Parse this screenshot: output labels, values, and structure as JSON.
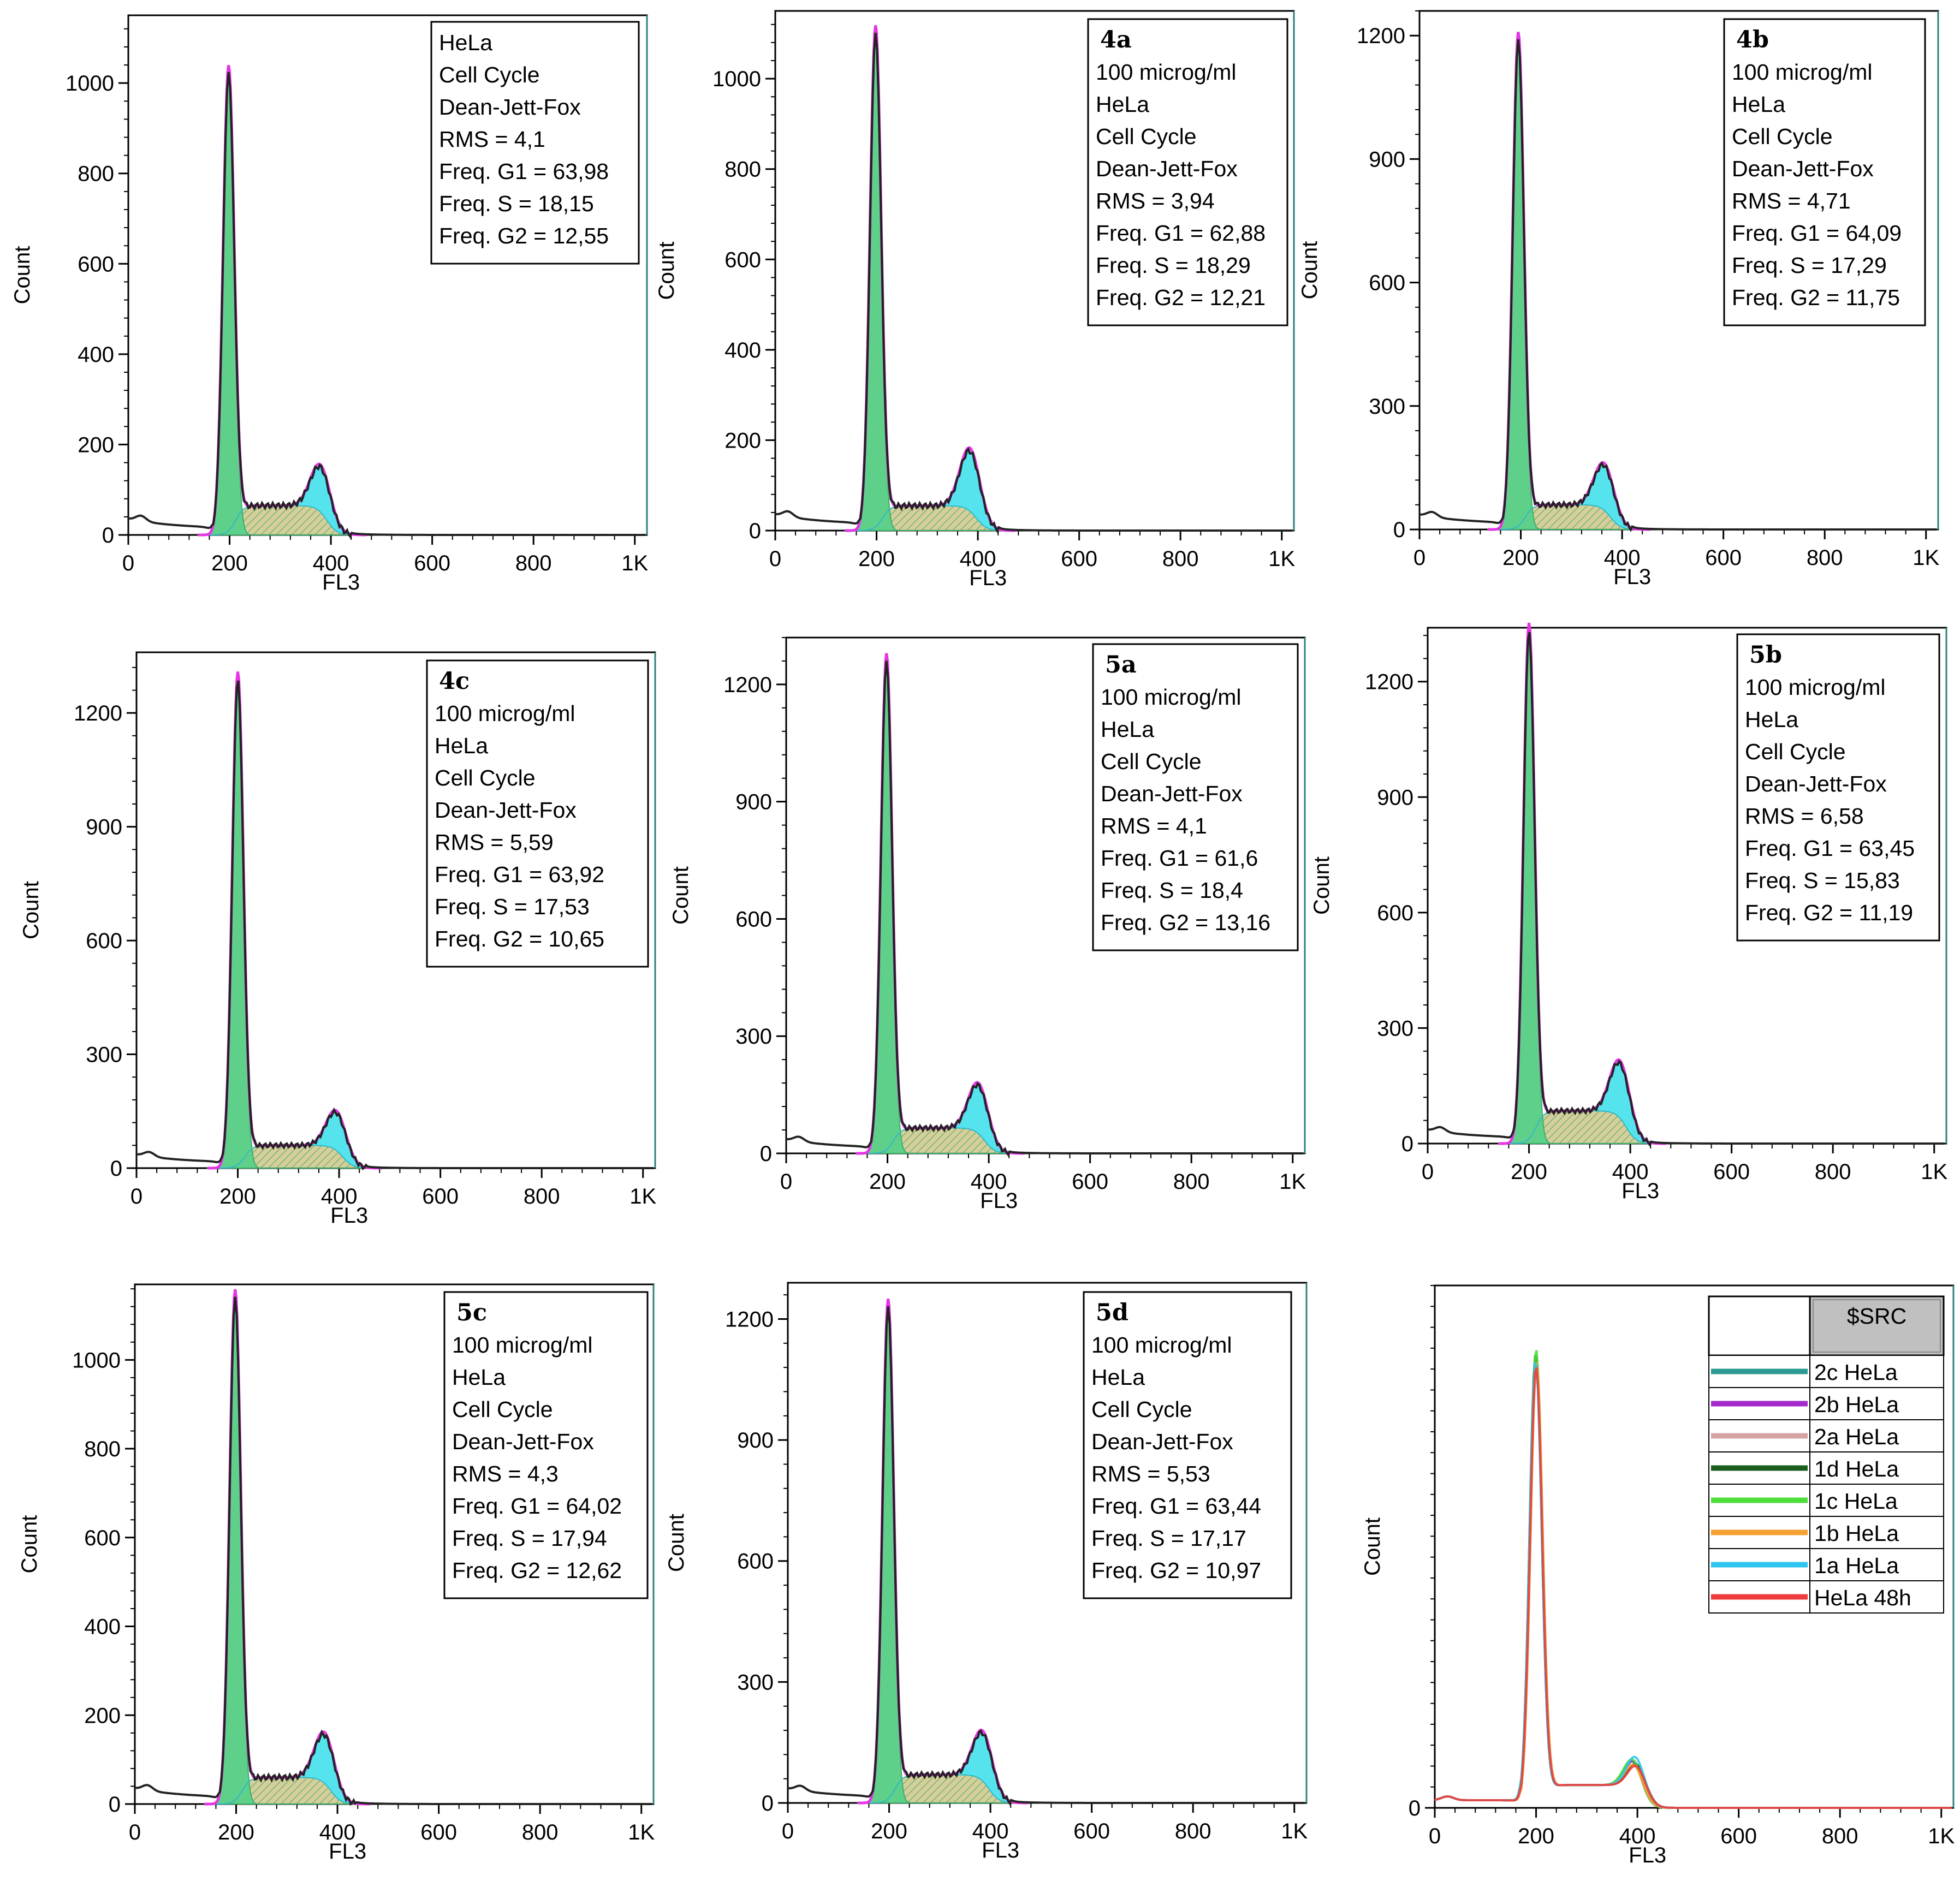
{
  "colors": {
    "g1_fill": "#5fd08a",
    "s_fill": "#cfc589",
    "g2_fill": "#55e3ee",
    "s_hatch": "#2ea85a",
    "envelope": "#e535e5",
    "data_line": "#222222",
    "frame_accent": "#2e7f7a",
    "legend_header_bg": "#c0c0c0"
  },
  "chart_data": [
    {
      "id": "base",
      "type": "histogram",
      "title": "",
      "xlabel": "FL3",
      "ylabel": "Count",
      "xlim": [
        0,
        1024
      ],
      "ylim": [
        0,
        1150
      ],
      "yticks": [
        "0",
        "200",
        "400",
        "600",
        "800",
        "1000"
      ],
      "ytick_values": [
        0,
        200,
        400,
        600,
        800,
        1000
      ],
      "xticks": [
        "0",
        "200",
        "400",
        "600",
        "800",
        "1K"
      ],
      "xtick_values": [
        0,
        200,
        400,
        600,
        800,
        1000
      ],
      "info_bold": "",
      "info_lines": [
        "HeLa",
        "Cell Cycle",
        "Dean-Jett-Fox",
        "RMS  = 4,1",
        "Freq. G1  = 63,98",
        "Freq. S = 18,15",
        "Freq. G2  = 12,55"
      ],
      "g1_peak": 1030,
      "g2_peak": 105,
      "s_level": 65,
      "g1_pos": 198,
      "g2_pos": 380
    },
    {
      "id": "4a",
      "type": "histogram",
      "xlabel": "FL3",
      "ylabel": "Count",
      "xlim": [
        0,
        1024
      ],
      "ylim": [
        0,
        1150
      ],
      "yticks": [
        "0",
        "200",
        "400",
        "600",
        "800",
        "1000"
      ],
      "ytick_values": [
        0,
        200,
        400,
        600,
        800,
        1000
      ],
      "xticks": [
        "0",
        "200",
        "400",
        "600",
        "800",
        "1K"
      ],
      "xtick_values": [
        0,
        200,
        400,
        600,
        800,
        1000
      ],
      "info_bold": "4a",
      "info_lines": [
        "100 microg/ml",
        "HeLa",
        "Cell Cycle",
        "Dean-Jett-Fox",
        "RMS  = 3,94",
        "Freq. G1  = 62,88",
        "Freq. S = 18,29",
        "Freq. G2  = 12,21"
      ],
      "g1_peak": 1110,
      "g2_peak": 140,
      "s_level": 55,
      "g1_pos": 198,
      "g2_pos": 385
    },
    {
      "id": "4b",
      "type": "histogram",
      "xlabel": "FL3",
      "ylabel": "Count",
      "xlim": [
        0,
        1024
      ],
      "ylim": [
        0,
        1260
      ],
      "yticks": [
        "0",
        "300",
        "600",
        "900",
        "1200"
      ],
      "ytick_values": [
        0,
        300,
        600,
        900,
        1200
      ],
      "xticks": [
        "0",
        "200",
        "400",
        "600",
        "800",
        "1K"
      ],
      "xtick_values": [
        0,
        200,
        400,
        600,
        800,
        1000
      ],
      "info_bold": "4b",
      "info_lines": [
        "100 microg/ml",
        "HeLa",
        "Cell Cycle",
        "Dean-Jett-Fox",
        "RMS  = 4,71",
        "Freq. G1  = 64,09",
        "Freq. S = 17,29",
        "Freq. G2  = 11,75"
      ],
      "g1_peak": 1200,
      "g2_peak": 115,
      "s_level": 60,
      "g1_pos": 195,
      "g2_pos": 365
    },
    {
      "id": "4c",
      "type": "histogram",
      "xlabel": "FL3",
      "ylabel": "Count",
      "xlim": [
        0,
        1024
      ],
      "ylim": [
        0,
        1360
      ],
      "yticks": [
        "0",
        "300",
        "600",
        "900",
        "1200"
      ],
      "ytick_values": [
        0,
        300,
        600,
        900,
        1200
      ],
      "xticks": [
        "0",
        "200",
        "400",
        "600",
        "800",
        "1K"
      ],
      "xtick_values": [
        0,
        200,
        400,
        600,
        800,
        1000
      ],
      "info_bold": "4c",
      "info_lines": [
        "100 microg/ml",
        "HeLa",
        "Cell Cycle",
        "Dean-Jett-Fox",
        "RMS  = 5,59",
        "Freq. G1  = 63,92",
        "Freq. S = 17,53",
        "Freq. G2  = 10,65"
      ],
      "g1_peak": 1300,
      "g2_peak": 105,
      "s_level": 60,
      "g1_pos": 200,
      "g2_pos": 395
    },
    {
      "id": "5a",
      "type": "histogram",
      "xlabel": "FL3",
      "ylabel": "Count",
      "xlim": [
        0,
        1024
      ],
      "ylim": [
        0,
        1320
      ],
      "yticks": [
        "0",
        "300",
        "600",
        "900",
        "1200"
      ],
      "ytick_values": [
        0,
        300,
        600,
        900,
        1200
      ],
      "xticks": [
        "0",
        "200",
        "400",
        "600",
        "800",
        "1K"
      ],
      "xtick_values": [
        0,
        200,
        400,
        600,
        800,
        1000
      ],
      "info_bold": "5a",
      "info_lines": [
        "100 microg/ml",
        "HeLa",
        "Cell Cycle",
        "Dean-Jett-Fox",
        "RMS  = 4,1",
        "Freq. G1  = 61,6",
        "Freq. S = 18,4",
        "Freq. G2  = 13,16"
      ],
      "g1_peak": 1270,
      "g2_peak": 130,
      "s_level": 65,
      "g1_pos": 198,
      "g2_pos": 380
    },
    {
      "id": "5b",
      "type": "histogram",
      "xlabel": "FL3",
      "ylabel": "Count",
      "xlim": [
        0,
        1024
      ],
      "ylim": [
        0,
        1340
      ],
      "yticks": [
        "0",
        "300",
        "600",
        "900",
        "1200"
      ],
      "ytick_values": [
        0,
        300,
        600,
        900,
        1200
      ],
      "xticks": [
        "0",
        "200",
        "400",
        "600",
        "800",
        "1K"
      ],
      "xtick_values": [
        0,
        200,
        400,
        600,
        800,
        1000
      ],
      "info_bold": "5b",
      "info_lines": [
        "100 microg/ml",
        "HeLa",
        "Cell Cycle",
        "Dean-Jett-Fox",
        "RMS  = 6,58",
        "Freq. G1  = 63,45",
        "Freq. S = 15,83",
        "Freq. G2  = 11,19"
      ],
      "g1_peak": 1340,
      "g2_peak": 150,
      "s_level": 85,
      "g1_pos": 200,
      "g2_pos": 380
    },
    {
      "id": "5c",
      "type": "histogram",
      "xlabel": "FL3",
      "ylabel": "Count",
      "xlim": [
        0,
        1024
      ],
      "ylim": [
        0,
        1170
      ],
      "yticks": [
        "0",
        "200",
        "400",
        "600",
        "800",
        "1000"
      ],
      "ytick_values": [
        0,
        200,
        400,
        600,
        800,
        1000
      ],
      "xticks": [
        "0",
        "200",
        "400",
        "600",
        "800",
        "1K"
      ],
      "xtick_values": [
        0,
        200,
        400,
        600,
        800,
        1000
      ],
      "info_bold": "5c",
      "info_lines": [
        "100 microg/ml",
        "HeLa",
        "Cell Cycle",
        "Dean-Jett-Fox",
        "RMS  = 4,3",
        "Freq. G1  = 64,02",
        "Freq. S = 17,94",
        "Freq. G2  = 12,62"
      ],
      "g1_peak": 1150,
      "g2_peak": 115,
      "s_level": 60,
      "g1_pos": 198,
      "g2_pos": 375
    },
    {
      "id": "5d",
      "type": "histogram",
      "xlabel": "FL3",
      "ylabel": "Count",
      "xlim": [
        0,
        1024
      ],
      "ylim": [
        0,
        1290
      ],
      "yticks": [
        "0",
        "300",
        "600",
        "900",
        "1200"
      ],
      "ytick_values": [
        0,
        300,
        600,
        900,
        1200
      ],
      "xticks": [
        "0",
        "200",
        "400",
        "600",
        "800",
        "1K"
      ],
      "xtick_values": [
        0,
        200,
        400,
        600,
        800,
        1000
      ],
      "info_bold": "5d",
      "info_lines": [
        "100 microg/ml",
        "HeLa",
        "Cell Cycle",
        "Dean-Jett-Fox",
        "RMS  = 5,53",
        "Freq. G1  = 63,44",
        "Freq. S = 17,17",
        "Freq. G2  = 10,97"
      ],
      "g1_peak": 1240,
      "g2_peak": 125,
      "s_level": 70,
      "g1_pos": 198,
      "g2_pos": 385
    },
    {
      "id": "overlay",
      "type": "line",
      "xlabel": "FL3",
      "ylabel": "Count",
      "xlim": [
        0,
        1024
      ],
      "ylim": [
        0,
        1370
      ],
      "yticks": [
        "0"
      ],
      "ytick_values": [
        0
      ],
      "xticks": [
        "0",
        "200",
        "400",
        "600",
        "800",
        "1K"
      ],
      "xtick_values": [
        0,
        200,
        400,
        600,
        800,
        1000
      ],
      "legend_header": "$SRC",
      "series": [
        {
          "name": "2c  HeLa",
          "color": "#2a9a92",
          "g1_peak": 1175,
          "g2_peak": 105
        },
        {
          "name": "2b  HeLa",
          "color": "#a52acb",
          "g1_peak": 1180,
          "g2_peak": 110
        },
        {
          "name": "2a  HeLa",
          "color": "#d6a3a3",
          "g1_peak": 1170,
          "g2_peak": 100
        },
        {
          "name": "1d  HeLa",
          "color": "#1b5e20",
          "g1_peak": 1185,
          "g2_peak": 108
        },
        {
          "name": "1c  HeLa",
          "color": "#4dde3a",
          "g1_peak": 1195,
          "g2_peak": 112
        },
        {
          "name": "1b  HeLa",
          "color": "#f5a030",
          "g1_peak": 1160,
          "g2_peak": 95
        },
        {
          "name": "1a  HeLa",
          "color": "#2ec6f0",
          "g1_peak": 1165,
          "g2_peak": 130
        },
        {
          "name": "HeLa  48h",
          "color": "#f03c3c",
          "g1_peak": 1150,
          "g2_peak": 100
        }
      ]
    }
  ]
}
